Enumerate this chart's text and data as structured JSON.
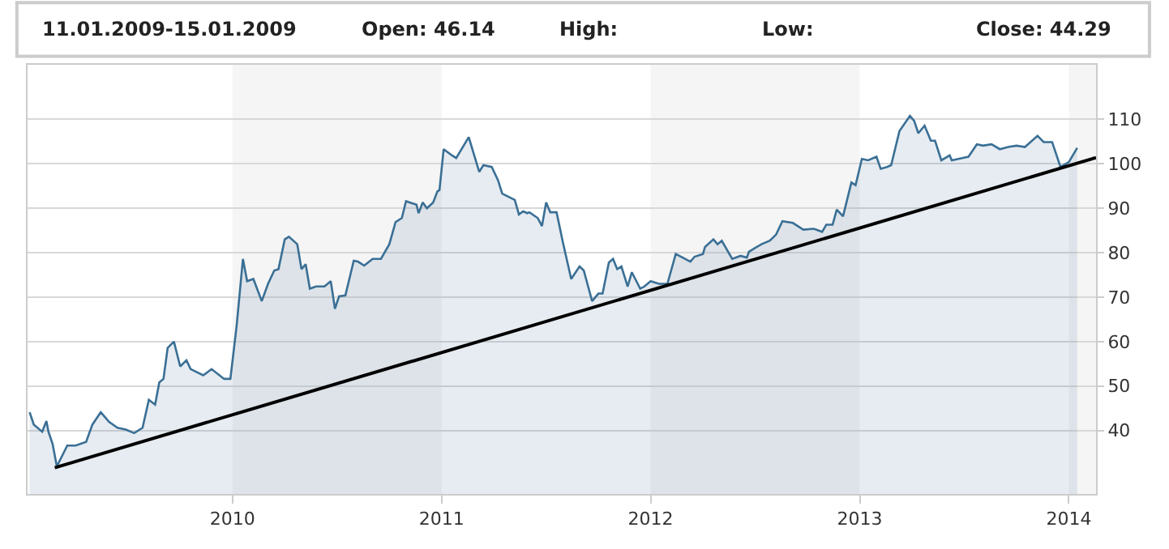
{
  "chart_data": {
    "type": "area",
    "annotations": [
      "11.01.2009-15.01.2009",
      "Open: 46.14",
      "High:",
      "Low:",
      "Close: 44.29"
    ],
    "xlim": [
      2009.02,
      2014.13
    ],
    "xticks": [
      2010,
      2011,
      2012,
      2013,
      2014
    ],
    "ylim": [
      25.7,
      122.3
    ],
    "yticks": [
      40,
      50,
      60,
      70,
      80,
      90,
      100,
      110
    ],
    "grid": "y",
    "marker": "none",
    "line_style": "solid",
    "bands": [
      {
        "axis": "x",
        "from": 2010,
        "to": 2011,
        "color": "#f5f5f5"
      },
      {
        "axis": "x",
        "from": 2012,
        "to": 2013,
        "color": "#f5f5f5"
      },
      {
        "axis": "x",
        "from": 2014,
        "to": 2014.13,
        "color": "#f5f5f5"
      }
    ],
    "series": [
      {
        "color": "#3a6f95",
        "x": [
          2009.03,
          2009.05,
          2009.09,
          2009.11,
          2009.12,
          2009.14,
          2009.16,
          2009.21,
          2009.25,
          2009.3,
          2009.33,
          2009.37,
          2009.41,
          2009.45,
          2009.49,
          2009.53,
          2009.57,
          2009.6,
          2009.63,
          2009.65,
          2009.67,
          2009.69,
          2009.72,
          2009.75,
          2009.78,
          2009.8,
          2009.86,
          2009.9,
          2009.96,
          2009.99,
          2010.02,
          2010.05,
          2010.07,
          2010.1,
          2010.14,
          2010.17,
          2010.2,
          2010.22,
          2010.25,
          2010.27,
          2010.31,
          2010.33,
          2010.35,
          2010.37,
          2010.4,
          2010.44,
          2010.47,
          2010.49,
          2010.51,
          2010.54,
          2010.58,
          2010.6,
          2010.63,
          2010.67,
          2010.71,
          2010.75,
          2010.78,
          2010.81,
          2010.83,
          2010.88,
          2010.89,
          2010.91,
          2010.93,
          2010.96,
          2010.98,
          2010.99,
          2011.01,
          2011.05,
          2011.07,
          2011.13,
          2011.16,
          2011.18,
          2011.2,
          2011.24,
          2011.27,
          2011.29,
          2011.35,
          2011.37,
          2011.39,
          2011.41,
          2011.42,
          2011.46,
          2011.48,
          2011.5,
          2011.52,
          2011.55,
          2011.58,
          2011.62,
          2011.66,
          2011.68,
          2011.72,
          2011.75,
          2011.77,
          2011.8,
          2011.82,
          2011.84,
          2011.86,
          2011.89,
          2011.91,
          2011.95,
          2011.97,
          2012.0,
          2012.04,
          2012.08,
          2012.12,
          2012.19,
          2012.21,
          2012.25,
          2012.26,
          2012.3,
          2012.32,
          2012.34,
          2012.39,
          2012.43,
          2012.46,
          2012.47,
          2012.5,
          2012.53,
          2012.57,
          2012.6,
          2012.63,
          2012.68,
          2012.73,
          2012.78,
          2012.82,
          2012.84,
          2012.87,
          2012.89,
          2012.92,
          2012.96,
          2012.98,
          2013.01,
          2013.04,
          2013.08,
          2013.1,
          2013.13,
          2013.15,
          2013.19,
          2013.24,
          2013.26,
          2013.28,
          2013.31,
          2013.34,
          2013.36,
          2013.39,
          2013.43,
          2013.44,
          2013.49,
          2013.52,
          2013.56,
          2013.59,
          2013.63,
          2013.67,
          2013.71,
          2013.75,
          2013.79,
          2013.85,
          2013.88,
          2013.92,
          2013.96,
          2014.0,
          2014.04
        ],
        "values": [
          44.1,
          41.3,
          39.7,
          42.1,
          39.7,
          36.9,
          31.9,
          36.6,
          36.6,
          37.4,
          41.3,
          44.1,
          41.9,
          40.6,
          40.2,
          39.4,
          40.6,
          46.9,
          45.8,
          50.8,
          51.6,
          58.6,
          60,
          54.4,
          55.8,
          53.8,
          52.4,
          53.8,
          51.6,
          51.6,
          63.6,
          78.6,
          73.6,
          74.1,
          69.1,
          73,
          76,
          76.3,
          83,
          83.6,
          81.9,
          76.3,
          77.4,
          71.9,
          72.4,
          72.4,
          73.6,
          67.4,
          70.2,
          70.4,
          78.2,
          78,
          77.1,
          78.6,
          78.6,
          81.9,
          86.9,
          87.8,
          91.6,
          90.8,
          88.9,
          91.3,
          90,
          91.3,
          93.8,
          94.1,
          103.3,
          101.9,
          101.3,
          106,
          101.3,
          98.2,
          99.7,
          99.3,
          96.3,
          93.3,
          91.9,
          88.6,
          89.3,
          88.9,
          89.1,
          87.8,
          86,
          91.3,
          89.1,
          89.1,
          82.4,
          74.1,
          76.9,
          76,
          69.1,
          70.8,
          70.8,
          77.8,
          78.6,
          76.3,
          76.9,
          72.4,
          75.6,
          71.9,
          72.4,
          73.6,
          73,
          73,
          79.7,
          78,
          79.1,
          79.7,
          81.3,
          83,
          81.9,
          82.7,
          78.6,
          79.3,
          78.9,
          80.2,
          81.1,
          81.9,
          82.7,
          84.1,
          87.1,
          86.7,
          85.2,
          85.4,
          84.7,
          86.3,
          86.3,
          89.7,
          88.2,
          95.8,
          95.2,
          101.1,
          100.8,
          101.6,
          98.9,
          99.3,
          99.7,
          107.4,
          110.8,
          109.7,
          106.9,
          108.6,
          105.2,
          105.2,
          100.8,
          101.9,
          100.8,
          101.3,
          101.6,
          104.4,
          104.1,
          104.4,
          103.3,
          103.8,
          104.1,
          103.8,
          106.3,
          104.9,
          104.9,
          99.3,
          100.4,
          103.6
        ]
      },
      {
        "type": "line",
        "color": "#000000",
        "x": [
          2009.15,
          2014.13
        ],
        "values": [
          31.6,
          101.4
        ]
      }
    ]
  }
}
